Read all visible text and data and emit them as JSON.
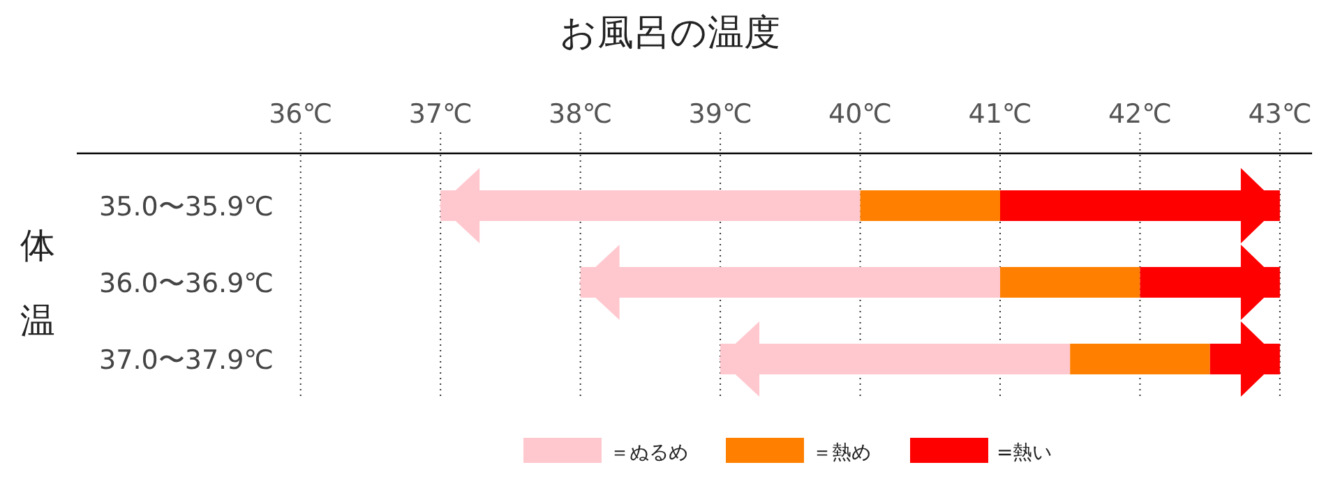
{
  "chart_data": {
    "type": "bar",
    "title": "お風呂の温度",
    "ylabel": "体温",
    "orientation": "horizontal",
    "categories": [
      "35.0〜35.9℃",
      "36.0〜36.9℃",
      "37.0〜37.9℃"
    ],
    "series": [
      {
        "name": "＝ぬるめ",
        "color": "#ffc8cf",
        "base": [
          37,
          38,
          39
        ],
        "values": [
          3,
          3,
          2.5
        ]
      },
      {
        "name": "＝熱め",
        "color": "#ff8000",
        "base": [
          40,
          41,
          41.5
        ],
        "values": [
          1,
          1,
          1
        ]
      },
      {
        "name": "=熱い",
        "color": "#ff0000",
        "base": [
          41,
          42,
          42.5
        ],
        "values": [
          2,
          1,
          0.5
        ]
      }
    ],
    "xlim": [
      34.4,
      43.23
    ],
    "xticks": [
      {
        "value": 36,
        "label": "36℃"
      },
      {
        "value": 37,
        "label": "37℃"
      },
      {
        "value": 38,
        "label": "38℃"
      },
      {
        "value": 39,
        "label": "39℃"
      },
      {
        "value": 40,
        "label": "40℃"
      },
      {
        "value": 41,
        "label": "41℃"
      },
      {
        "value": 42,
        "label": "42℃"
      },
      {
        "value": 43,
        "label": "43℃"
      }
    ],
    "grid": "x",
    "legend": "bottom"
  }
}
